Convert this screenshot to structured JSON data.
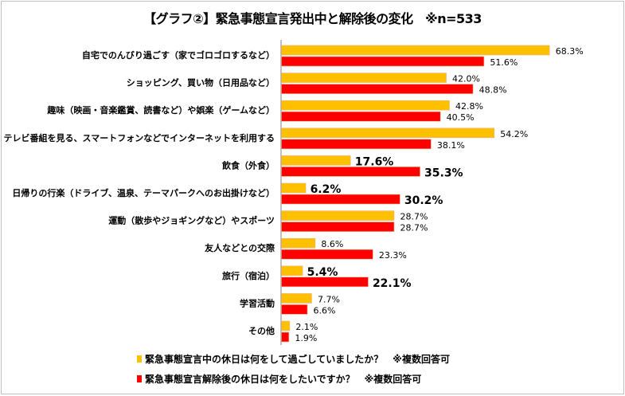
{
  "chart_data": {
    "type": "bar",
    "orientation": "horizontal",
    "title": "【グラフ②】緊急事態宣言発出中と解除後の変化　※n=533",
    "categories": [
      "自宅でのんびり過ごす（家でゴロゴロするなど）",
      "ショッピング、買い物（日用品など）",
      "趣味（映画・音楽鑑賞、読書など）や娯楽（ゲームなど）",
      "テレビ番組を見る、スマートフォンなどでインターネットを利用する",
      "飲食（外食）",
      "日帰りの行楽（ドライブ、温泉、テーマパークへのお出掛けなど）",
      "運動（散歩やジョギングなど）やスポーツ",
      "友人などとの交際",
      "旅行（宿泊）",
      "学習活動",
      "その他"
    ],
    "series": [
      {
        "name": "緊急事態宣言中の休日は何をして過ごしていましたか？　※複数回答可",
        "color": "#FFC000",
        "values": [
          68.3,
          42.0,
          42.8,
          54.2,
          17.6,
          6.2,
          28.7,
          8.6,
          5.4,
          7.7,
          2.1
        ]
      },
      {
        "name": "緊急事態宣言解除後の休日は何をしたいですか？　※複数回答可",
        "color": "#FF0000",
        "values": [
          51.6,
          48.8,
          40.5,
          38.1,
          35.3,
          30.2,
          28.7,
          23.3,
          22.1,
          6.6,
          1.9
        ]
      }
    ],
    "emphasized_categories": [
      "飲食（外食）",
      "日帰りの行楽（ドライブ、温泉、テーマパークへのお出掛けなど）",
      "旅行（宿泊）"
    ],
    "value_format": "0.0%",
    "legend": "bottom",
    "grid": false
  }
}
